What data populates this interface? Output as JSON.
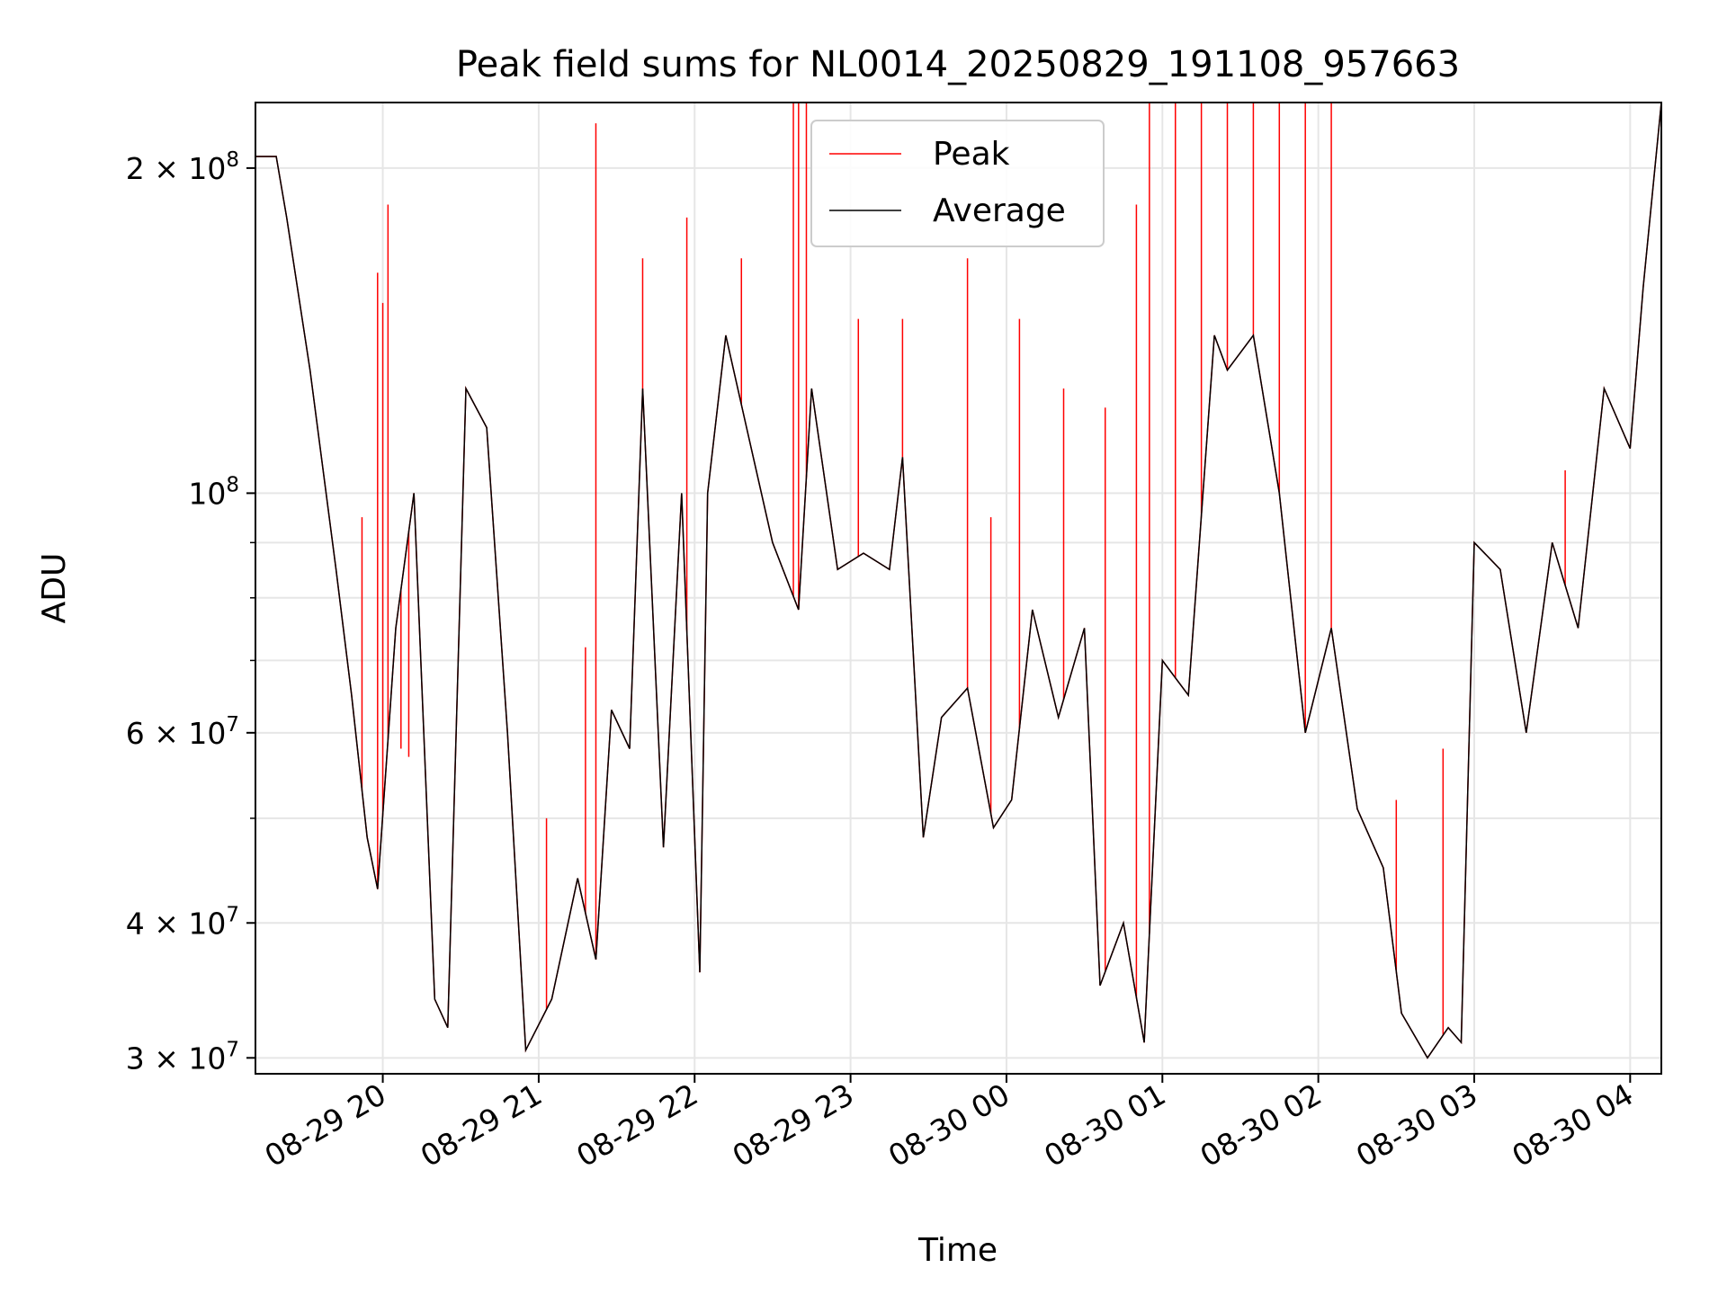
{
  "chart_data": {
    "type": "line",
    "title": "Peak field sums for NL0014_20250829_191108_957663",
    "xlabel": "Time",
    "ylabel": "ADU",
    "yscale": "log",
    "ylim": [
      29000000,
      230000000
    ],
    "xlim": [
      "2025-08-29 19:11",
      "2025-08-30 04:12"
    ],
    "grid": true,
    "legend": "top-center",
    "x_ticks": [
      "2025-08-29 20:00",
      "2025-08-29 21:00",
      "2025-08-29 22:00",
      "2025-08-29 23:00",
      "2025-08-30 00:00",
      "2025-08-30 01:00",
      "2025-08-30 02:00",
      "2025-08-30 03:00",
      "2025-08-30 04:00"
    ],
    "x_tick_labels": [
      "08-29 20",
      "08-29 21",
      "08-29 22",
      "08-29 23",
      "08-30 00",
      "08-30 01",
      "08-30 02",
      "08-30 03",
      "08-30 04"
    ],
    "y_ticks": [
      {
        "value": 30000000,
        "mantissa": "3",
        "exp": "7"
      },
      {
        "value": 40000000,
        "mantissa": "4",
        "exp": "7"
      },
      {
        "value": 60000000,
        "mantissa": "6",
        "exp": "7"
      },
      {
        "value": 100000000,
        "mantissa": "",
        "exp": "8"
      },
      {
        "value": 200000000,
        "mantissa": "2",
        "exp": "8"
      }
    ],
    "y_minor_ticks": [
      50000000,
      70000000,
      80000000,
      90000000
    ],
    "series": [
      {
        "name": "Average",
        "color": "#000000",
        "x": [
          "2025-08-29 19:11",
          "2025-08-29 19:19",
          "2025-08-29 19:23",
          "2025-08-29 19:32",
          "2025-08-29 19:42",
          "2025-08-29 19:48",
          "2025-08-29 19:54",
          "2025-08-29 19:58",
          "2025-08-29 20:05",
          "2025-08-29 20:12",
          "2025-08-29 20:20",
          "2025-08-29 20:25",
          "2025-08-29 20:32",
          "2025-08-29 20:40",
          "2025-08-29 20:48",
          "2025-08-29 20:55",
          "2025-08-29 21:05",
          "2025-08-29 21:15",
          "2025-08-29 21:22",
          "2025-08-29 21:28",
          "2025-08-29 21:35",
          "2025-08-29 21:40",
          "2025-08-29 21:48",
          "2025-08-29 21:55",
          "2025-08-29 22:02",
          "2025-08-29 22:05",
          "2025-08-29 22:12",
          "2025-08-29 22:20",
          "2025-08-29 22:30",
          "2025-08-29 22:40",
          "2025-08-29 22:45",
          "2025-08-29 22:55",
          "2025-08-29 23:05",
          "2025-08-29 23:15",
          "2025-08-29 23:20",
          "2025-08-29 23:28",
          "2025-08-29 23:35",
          "2025-08-29 23:45",
          "2025-08-29 23:55",
          "2025-08-30 00:02",
          "2025-08-30 00:10",
          "2025-08-30 00:20",
          "2025-08-30 00:30",
          "2025-08-30 00:36",
          "2025-08-30 00:45",
          "2025-08-30 00:53",
          "2025-08-30 01:00",
          "2025-08-30 01:10",
          "2025-08-30 01:20",
          "2025-08-30 01:25",
          "2025-08-30 01:35",
          "2025-08-30 01:45",
          "2025-08-30 01:55",
          "2025-08-30 02:05",
          "2025-08-30 02:15",
          "2025-08-30 02:25",
          "2025-08-30 02:32",
          "2025-08-30 02:42",
          "2025-08-30 02:50",
          "2025-08-30 02:55",
          "2025-08-30 03:00",
          "2025-08-30 03:10",
          "2025-08-30 03:20",
          "2025-08-30 03:30",
          "2025-08-30 03:40",
          "2025-08-30 03:50",
          "2025-08-30 04:00",
          "2025-08-30 04:05",
          "2025-08-30 04:12"
        ],
        "y": [
          205000000,
          205000000,
          180000000,
          130000000,
          85000000,
          65000000,
          48000000,
          43000000,
          75000000,
          100000000,
          34000000,
          32000000,
          125000000,
          115000000,
          60000000,
          30500000,
          34000000,
          44000000,
          37000000,
          63000000,
          58000000,
          125000000,
          47000000,
          100000000,
          36000000,
          100000000,
          140000000,
          115000000,
          90000000,
          78000000,
          125000000,
          85000000,
          88000000,
          85000000,
          108000000,
          48000000,
          62000000,
          66000000,
          49000000,
          52000000,
          78000000,
          62000000,
          75000000,
          35000000,
          40000000,
          31000000,
          70000000,
          65000000,
          140000000,
          130000000,
          140000000,
          100000000,
          60000000,
          75000000,
          51000000,
          45000000,
          33000000,
          30000000,
          32000000,
          31000000,
          90000000,
          85000000,
          60000000,
          90000000,
          75000000,
          125000000,
          110000000,
          155000000,
          230000000
        ]
      },
      {
        "name": "Peak",
        "color": "#ff0000",
        "spikes": [
          {
            "x": "2025-08-29 19:52",
            "y": 95000000
          },
          {
            "x": "2025-08-29 19:58",
            "y": 160000000
          },
          {
            "x": "2025-08-29 20:00",
            "y": 150000000
          },
          {
            "x": "2025-08-29 20:02",
            "y": 185000000
          },
          {
            "x": "2025-08-29 20:07",
            "y": 58000000
          },
          {
            "x": "2025-08-29 20:10",
            "y": 57000000
          },
          {
            "x": "2025-08-29 21:03",
            "y": 50000000
          },
          {
            "x": "2025-08-29 21:18",
            "y": 72000000
          },
          {
            "x": "2025-08-29 21:22",
            "y": 220000000
          },
          {
            "x": "2025-08-29 21:40",
            "y": 165000000
          },
          {
            "x": "2025-08-29 21:57",
            "y": 180000000
          },
          {
            "x": "2025-08-29 22:18",
            "y": 165000000
          },
          {
            "x": "2025-08-29 22:38",
            "y": 230000000
          },
          {
            "x": "2025-08-29 22:40",
            "y": 230000000
          },
          {
            "x": "2025-08-29 22:43",
            "y": 230000000
          },
          {
            "x": "2025-08-29 23:03",
            "y": 145000000
          },
          {
            "x": "2025-08-29 23:20",
            "y": 145000000
          },
          {
            "x": "2025-08-29 23:45",
            "y": 165000000
          },
          {
            "x": "2025-08-29 23:54",
            "y": 95000000
          },
          {
            "x": "2025-08-30 00:05",
            "y": 145000000
          },
          {
            "x": "2025-08-30 00:22",
            "y": 125000000
          },
          {
            "x": "2025-08-30 00:38",
            "y": 120000000
          },
          {
            "x": "2025-08-30 00:50",
            "y": 185000000
          },
          {
            "x": "2025-08-30 00:55",
            "y": 230000000
          },
          {
            "x": "2025-08-30 01:05",
            "y": 230000000
          },
          {
            "x": "2025-08-30 01:15",
            "y": 230000000
          },
          {
            "x": "2025-08-30 01:25",
            "y": 230000000
          },
          {
            "x": "2025-08-30 01:35",
            "y": 230000000
          },
          {
            "x": "2025-08-30 01:45",
            "y": 230000000
          },
          {
            "x": "2025-08-30 01:55",
            "y": 230000000
          },
          {
            "x": "2025-08-30 02:05",
            "y": 230000000
          },
          {
            "x": "2025-08-30 02:30",
            "y": 52000000
          },
          {
            "x": "2025-08-30 02:48",
            "y": 58000000
          },
          {
            "x": "2025-08-30 03:35",
            "y": 105000000
          }
        ]
      }
    ]
  }
}
